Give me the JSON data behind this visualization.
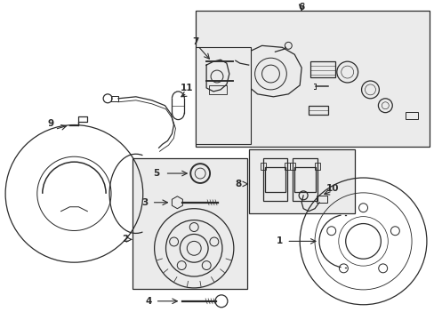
{
  "bg_color": "#ffffff",
  "line_color": "#2a2a2a",
  "shade_color": "#ebebeb",
  "fig_w": 4.89,
  "fig_h": 3.6,
  "dpi": 100
}
